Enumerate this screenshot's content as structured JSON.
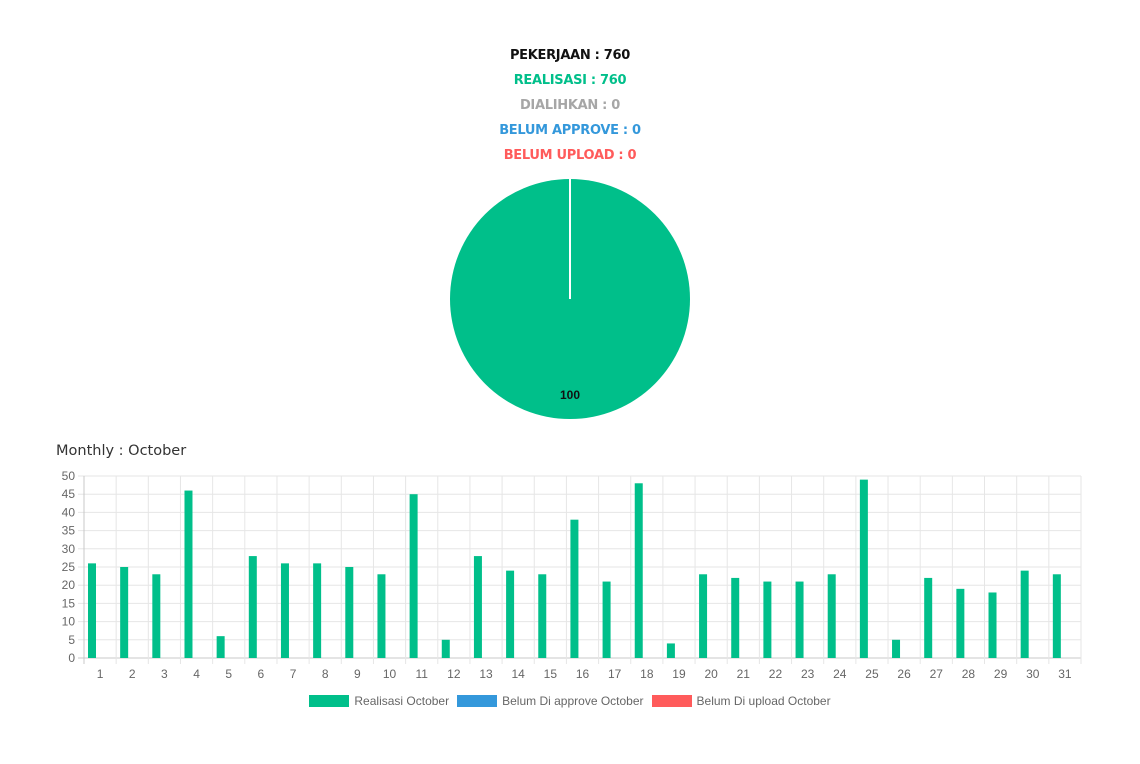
{
  "summary": {
    "pekerjaan": "PEKERJAAN : 760",
    "realisasi": "REALISASI : 760",
    "dialihkan": "DIALIHKAN : 0",
    "belum_approve": "BELUM APPROVE : 0",
    "belum_upload": "BELUM UPLOAD : 0"
  },
  "colors": {
    "pekerjaan": "#111111",
    "realisasi": "#00bf8a",
    "dialihkan": "#a6a6a6",
    "belum_approve": "#3498db",
    "belum_upload": "#ff5b5b"
  },
  "monthly_title": "Monthly : October",
  "chart_data": [
    {
      "type": "pie",
      "slices": [
        {
          "value": 100,
          "label": "100",
          "color": "#00bf8a"
        }
      ]
    },
    {
      "type": "bar",
      "categories": [
        "1",
        "2",
        "3",
        "4",
        "5",
        "6",
        "7",
        "8",
        "9",
        "10",
        "11",
        "12",
        "13",
        "14",
        "15",
        "16",
        "17",
        "18",
        "19",
        "20",
        "21",
        "22",
        "23",
        "24",
        "25",
        "26",
        "27",
        "28",
        "29",
        "30",
        "31"
      ],
      "series": [
        {
          "name": "Realisasi October",
          "color": "#00bf8a",
          "values": [
            26,
            25,
            23,
            46,
            6,
            28,
            26,
            26,
            25,
            23,
            45,
            5,
            28,
            24,
            23,
            38,
            21,
            48,
            4,
            23,
            22,
            21,
            21,
            23,
            49,
            5,
            22,
            19,
            18,
            24,
            23
          ]
        },
        {
          "name": "Belum Di approve October",
          "color": "#3498db",
          "values": [
            0,
            0,
            0,
            0,
            0,
            0,
            0,
            0,
            0,
            0,
            0,
            0,
            0,
            0,
            0,
            0,
            0,
            0,
            0,
            0,
            0,
            0,
            0,
            0,
            0,
            0,
            0,
            0,
            0,
            0,
            0
          ]
        },
        {
          "name": "Belum Di upload October",
          "color": "#ff5b5b",
          "values": [
            0,
            0,
            0,
            0,
            0,
            0,
            0,
            0,
            0,
            0,
            0,
            0,
            0,
            0,
            0,
            0,
            0,
            0,
            0,
            0,
            0,
            0,
            0,
            0,
            0,
            0,
            0,
            0,
            0,
            0,
            0
          ]
        }
      ],
      "yticks": [
        0,
        5,
        10,
        15,
        20,
        25,
        30,
        35,
        40,
        45,
        50
      ],
      "ylim": [
        0,
        50
      ],
      "grid": true,
      "legend": "bottom"
    }
  ]
}
